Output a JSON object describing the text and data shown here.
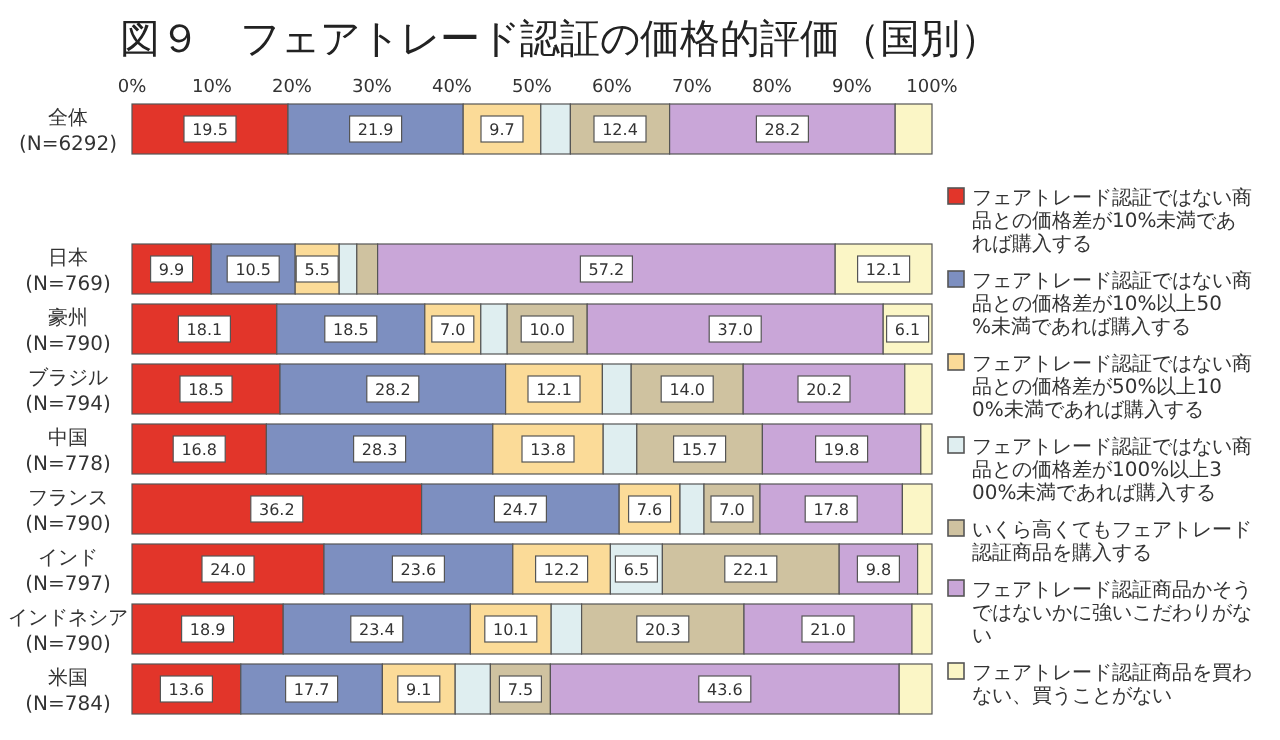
{
  "chart_data": {
    "type": "bar",
    "orientation": "horizontal",
    "stacked": true,
    "title": "図９　フェアトレード認証の価格的評価（国別）",
    "categories": [
      "全体\n(N=6292)",
      "日本\n(N=769)",
      "豪州\n(N=790)",
      "ブラジル\n(N=794)",
      "中国\n(N=778)",
      "フランス\n(N=790)",
      "インド\n(N=797)",
      "インドネシア\n(N=790)",
      "米国\n(N=784)"
    ],
    "xlim": [
      0,
      100
    ],
    "xticks": [
      {
        "value": 0,
        "label": "0%"
      },
      {
        "value": 10,
        "label": "10%"
      },
      {
        "value": 20,
        "label": "20%"
      },
      {
        "value": 30,
        "label": "30%"
      },
      {
        "value": 40,
        "label": "40%"
      },
      {
        "value": 50,
        "label": "50%"
      },
      {
        "value": 60,
        "label": "60%"
      },
      {
        "value": 70,
        "label": "70%"
      },
      {
        "value": 80,
        "label": "80%"
      },
      {
        "value": 90,
        "label": "90%"
      },
      {
        "value": 100,
        "label": "100%"
      }
    ],
    "legend": "right",
    "grid": false,
    "series": [
      {
        "name": "フェアトレード認証ではない商品との価格差が10%未満であれば購入する",
        "color": "#e2352a",
        "values": [
          19.5,
          9.9,
          18.1,
          18.5,
          16.8,
          36.2,
          24.0,
          18.9,
          13.6
        ],
        "value_labels": [
          "19.5",
          "9.9",
          "18.1",
          "18.5",
          "16.8",
          "36.2",
          "24.0",
          "18.9",
          "13.6"
        ]
      },
      {
        "name": "フェアトレード認証ではない商品との価格差が10%以上50%未満であれば購入する",
        "color": "#7d8fc0",
        "values": [
          21.9,
          10.5,
          18.5,
          28.2,
          28.3,
          24.7,
          23.6,
          23.4,
          17.7
        ],
        "value_labels": [
          "21.9",
          "10.5",
          "18.5",
          "28.2",
          "28.3",
          "24.7",
          "23.6",
          "23.4",
          "17.7"
        ]
      },
      {
        "name": "フェアトレード認証ではない商品との価格差が50%以上100%未満であれば購入する",
        "color": "#fbdb98",
        "values": [
          9.7,
          5.5,
          7.0,
          12.1,
          13.8,
          7.6,
          12.2,
          10.1,
          9.1
        ],
        "value_labels": [
          "9.7",
          "5.5",
          "7.0",
          "12.1",
          "13.8",
          "7.6",
          "12.2",
          "10.1",
          "9.1"
        ]
      },
      {
        "name": "フェアトレード認証ではない商品との価格差が100%以上300%未満であれば購入する",
        "color": "#dfeef0",
        "values": [
          3.7,
          2.2,
          3.3,
          3.6,
          4.2,
          3.0,
          6.5,
          3.8,
          4.4
        ],
        "value_labels": [
          null,
          null,
          null,
          null,
          null,
          null,
          "6.5",
          null,
          null
        ]
      },
      {
        "name": "いくら高くてもフェアトレード認証商品を購入する",
        "color": "#cfc2a0",
        "values": [
          12.4,
          2.6,
          10.0,
          14.0,
          15.7,
          7.0,
          22.1,
          20.3,
          7.5
        ],
        "value_labels": [
          "12.4",
          null,
          "10.0",
          "14.0",
          "15.7",
          "7.0",
          "22.1",
          "20.3",
          "7.5"
        ]
      },
      {
        "name": "フェアトレード認証商品かそうではないかに強いこだわりがない",
        "color": "#c9a6d8",
        "values": [
          28.2,
          57.2,
          37.0,
          20.2,
          19.8,
          17.8,
          9.8,
          21.0,
          43.6
        ],
        "value_labels": [
          "28.2",
          "57.2",
          "37.0",
          "20.2",
          "19.8",
          "17.8",
          "9.8",
          "21.0",
          "43.6"
        ]
      },
      {
        "name": "フェアトレード認証商品を買わない、買うことがない",
        "color": "#fbf6c6",
        "values": [
          4.6,
          12.1,
          6.1,
          3.4,
          1.4,
          3.7,
          1.8,
          2.5,
          4.1
        ],
        "value_labels": [
          null,
          "12.1",
          "6.1",
          null,
          null,
          null,
          null,
          null,
          null
        ]
      }
    ]
  }
}
